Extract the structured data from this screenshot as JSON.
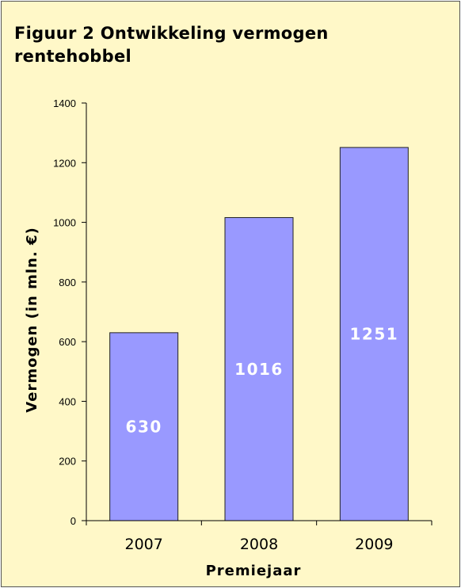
{
  "chart_data": {
    "type": "bar",
    "title": "Figuur 2  Ontwikkeling vermogen rentehobbel",
    "xlabel": "Premiejaar",
    "ylabel": "Vermogen (in mln. €)",
    "categories": [
      "2007",
      "2008",
      "2009"
    ],
    "values": [
      630,
      1016,
      1251
    ],
    "value_labels": [
      "630",
      "1016",
      "1251"
    ],
    "ylim": [
      0,
      1400
    ],
    "yticks": [
      0,
      200,
      400,
      600,
      800,
      1000,
      1200,
      1400
    ],
    "grid": false,
    "legend": "none"
  },
  "colors": {
    "background": "#fff8c8",
    "bar_fill": "#9999ff",
    "bar_stroke": "#222222",
    "axis": "#000000"
  }
}
